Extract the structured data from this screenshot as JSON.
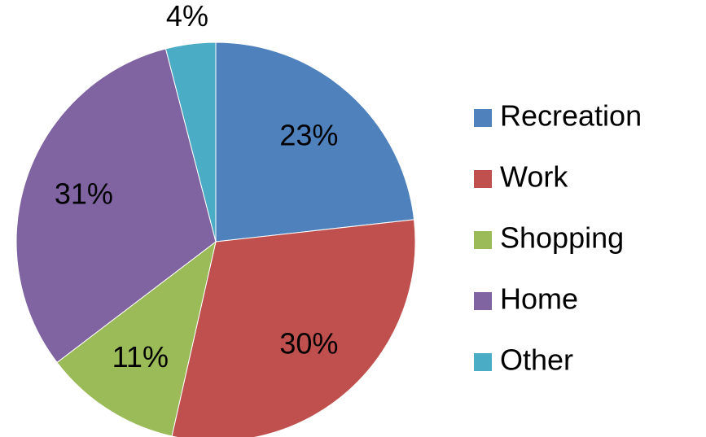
{
  "chart_data": {
    "type": "pie",
    "categories": [
      "Recreation",
      "Work",
      "Shopping",
      "Home",
      "Other"
    ],
    "values": [
      23,
      30,
      11,
      31,
      4
    ],
    "value_labels": [
      "23%",
      "30%",
      "11%",
      "31%",
      "4%"
    ],
    "colors": [
      "#4f81bd",
      "#c0504d",
      "#9bbb59",
      "#8064a2",
      "#4bacc6"
    ],
    "legend": "right"
  }
}
